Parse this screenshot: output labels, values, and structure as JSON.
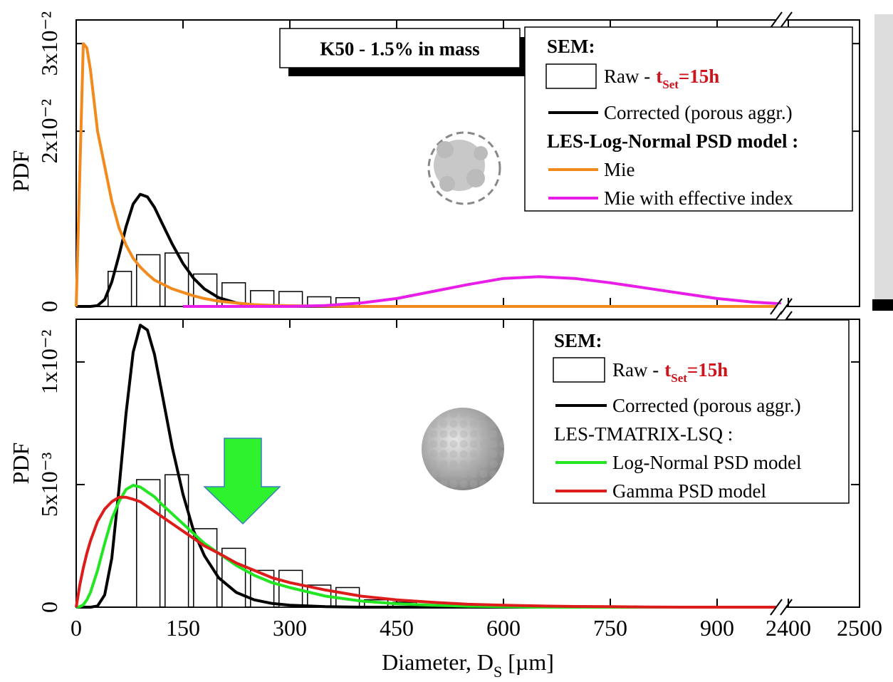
{
  "chart_data": [
    {
      "type": "combo",
      "annotation": "K50 - 1.5% in mass",
      "ylabel": "PDF",
      "xlim": [
        0,
        2500
      ],
      "axis_break": [
        990,
        2390
      ],
      "xticks": [
        0,
        150,
        300,
        450,
        600,
        750,
        900,
        2400,
        2500
      ],
      "ylim": [
        0,
        0.0327
      ],
      "yticks": [
        {
          "value": 0,
          "label": "0"
        },
        {
          "value": 0.02,
          "label": "2x10⁻²"
        },
        {
          "value": 0.03,
          "label": "3x10⁻²"
        }
      ],
      "legend_headings": [
        "SEM:",
        "LES-Log-Normal PSD model :"
      ],
      "legend_time": {
        "symbol": "t",
        "subscript": "Set",
        "value": "=15h"
      },
      "x": [
        0,
        5,
        10,
        15,
        20,
        30,
        40,
        50,
        60,
        70,
        80,
        90,
        100,
        110,
        120,
        135,
        150,
        165,
        180,
        200,
        225,
        250,
        275,
        300,
        350,
        400,
        450,
        500,
        550,
        600,
        650,
        700,
        750,
        800,
        850,
        900,
        950,
        990
      ],
      "series": [
        {
          "name": "Raw -",
          "type": "histogram",
          "color": "#ffffff",
          "bins": [
            40,
            80,
            120,
            160,
            200,
            240,
            280,
            320,
            360,
            400
          ],
          "values": [
            0.004,
            0.0059,
            0.0061,
            0.0037,
            0.0027,
            0.0018,
            0.0017,
            0.0011,
            0.001
          ]
        },
        {
          "name": "Corrected (porous aggr.)",
          "type": "line",
          "color": "#000000",
          "values": [
            0,
            0,
            0,
            0,
            0,
            0.0001,
            0.0008,
            0.0028,
            0.0058,
            0.0091,
            0.0117,
            0.0128,
            0.0125,
            0.0113,
            0.0096,
            0.0071,
            0.0049,
            0.0032,
            0.002,
            0.001,
            0.0004,
            0.00015,
            5e-05,
            2e-05,
            0,
            0,
            0,
            0,
            0,
            0,
            0,
            0,
            0,
            0,
            0,
            0,
            0,
            0
          ]
        },
        {
          "name": "Mie",
          "type": "line",
          "color": "#f28a1e",
          "values": [
            0,
            0.015,
            0.03,
            0.0295,
            0.027,
            0.02,
            0.016,
            0.012,
            0.009,
            0.007,
            0.0055,
            0.0045,
            0.0037,
            0.003,
            0.0026,
            0.002,
            0.0016,
            0.0012,
            0.0009,
            0.0006,
            0.0004,
            0.0002,
            0.00012,
            8e-05,
            3e-05,
            0,
            0,
            0,
            0,
            0,
            0,
            0,
            0,
            0,
            0,
            0,
            0,
            0
          ]
        },
        {
          "name": "Mie with effective index",
          "type": "line",
          "color": "#e81ee8",
          "values": [
            null,
            null,
            null,
            null,
            null,
            null,
            null,
            null,
            null,
            null,
            null,
            null,
            null,
            null,
            null,
            null,
            0,
            0,
            0,
            0,
            0,
            0,
            0,
            0,
            0.0001,
            0.0004,
            0.0009,
            0.0017,
            0.0025,
            0.0032,
            0.0034,
            0.0032,
            0.0027,
            0.0021,
            0.0015,
            0.0009,
            0.0005,
            0.0003
          ]
        }
      ]
    },
    {
      "type": "combo",
      "ylabel": "PDF",
      "xlabel": "Diameter, D",
      "xlabel_sub": "S",
      "xlabel_unit": "[µm]",
      "xlim": [
        0,
        2500
      ],
      "axis_break": [
        990,
        2390
      ],
      "xticks": [
        0,
        150,
        300,
        450,
        600,
        750,
        900,
        2400,
        2500
      ],
      "ylim": [
        0,
        0.01174
      ],
      "yticks": [
        {
          "value": 0,
          "label": "0"
        },
        {
          "value": 0.005,
          "label": "5x10⁻³"
        },
        {
          "value": 0.01,
          "label": "1x10⁻²"
        }
      ],
      "legend_headings": [
        "SEM:",
        "LES-TMATRIX-LSQ :"
      ],
      "legend_time": {
        "symbol": "t",
        "subscript": "Set",
        "value": "=15h"
      },
      "x": [
        0,
        5,
        10,
        15,
        20,
        30,
        40,
        50,
        60,
        70,
        80,
        90,
        100,
        110,
        120,
        135,
        150,
        165,
        180,
        200,
        225,
        250,
        275,
        300,
        350,
        400,
        450,
        500,
        550,
        600,
        650,
        700,
        750,
        800,
        850,
        900,
        950,
        990
      ],
      "series": [
        {
          "name": "Raw -",
          "type": "histogram",
          "color": "#ffffff",
          "bins": [
            80,
            120,
            160,
            200,
            240,
            280,
            320,
            360,
            400,
            440,
            480,
            520,
            560,
            600
          ],
          "values": [
            0.0052,
            0.0054,
            0.0032,
            0.0024,
            0.0015,
            0.0015,
            0.0009,
            0.0008,
            0.0003,
            0.0002,
            0.0001,
            0.0001,
            0.0001
          ]
        },
        {
          "name": "Corrected  (porous aggr.)",
          "type": "line",
          "color": "#000000",
          "values": [
            0,
            0,
            0,
            0,
            0,
            5e-05,
            0.0005,
            0.002,
            0.0048,
            0.0079,
            0.0104,
            0.0115,
            0.0113,
            0.0103,
            0.0088,
            0.0065,
            0.0046,
            0.0031,
            0.0021,
            0.0012,
            0.0006,
            0.0003,
            0.00015,
            8e-05,
            2e-05,
            0,
            0,
            0,
            0,
            0,
            0,
            0,
            0,
            0,
            0,
            0,
            0,
            0
          ]
        },
        {
          "name": "Log-Normal PSD model",
          "type": "line",
          "color": "#22e622",
          "values": [
            0,
            2e-05,
            0.0001,
            0.0003,
            0.0006,
            0.0015,
            0.0026,
            0.0036,
            0.0043,
            0.0048,
            0.00497,
            0.0049,
            0.0047,
            0.0045,
            0.0042,
            0.0038,
            0.0034,
            0.003,
            0.0026,
            0.0022,
            0.0017,
            0.0013,
            0.001,
            0.0008,
            0.00045,
            0.00025,
            0.00014,
            8e-05,
            4e-05,
            2e-05,
            0,
            0,
            0,
            0,
            0,
            0,
            0,
            0
          ]
        },
        {
          "name": "Gamma PSD model",
          "type": "line",
          "color": "#dd1c1c",
          "values": [
            0,
            0.0009,
            0.0016,
            0.0022,
            0.0027,
            0.0035,
            0.004,
            0.0043,
            0.00448,
            0.00448,
            0.0044,
            0.0043,
            0.0041,
            0.0039,
            0.0037,
            0.0034,
            0.0031,
            0.0028,
            0.0025,
            0.0022,
            0.0018,
            0.0015,
            0.0012,
            0.001,
            0.0007,
            0.00045,
            0.0003,
            0.0002,
            0.00012,
            8e-05,
            5e-05,
            3e-05,
            2e-05,
            1e-05,
            0,
            0,
            0,
            0
          ]
        }
      ]
    }
  ]
}
